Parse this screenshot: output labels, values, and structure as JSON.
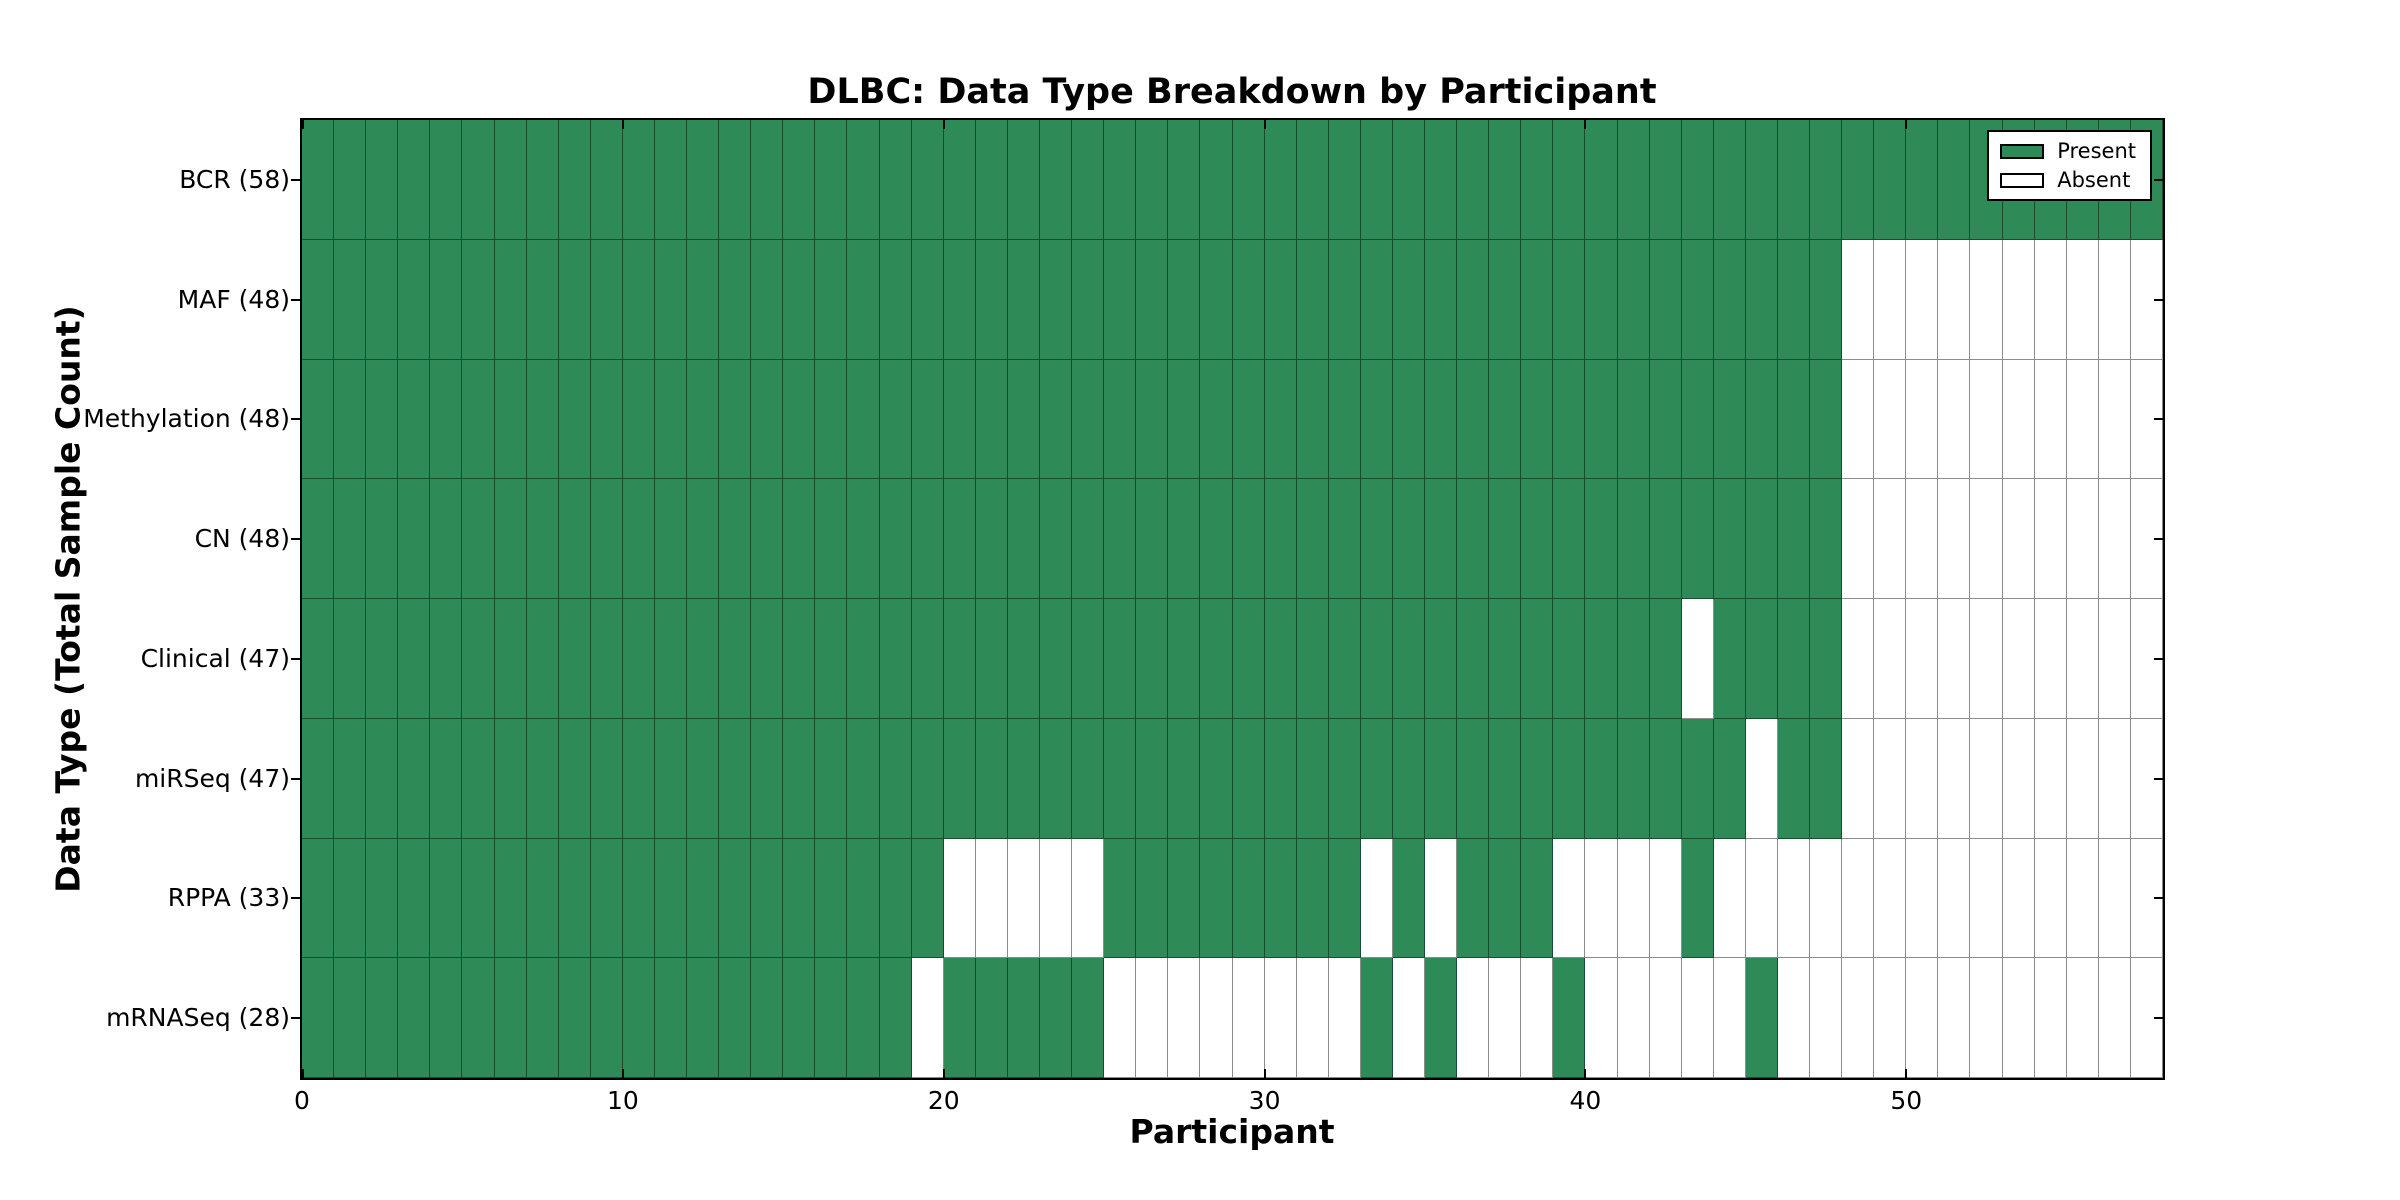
{
  "figure": {
    "background": "#ffffff"
  },
  "chart_data": {
    "type": "heatmap",
    "title": "DLBC: Data Type Breakdown by Participant",
    "xlabel": "Participant",
    "ylabel": "Data Type (Total Sample Count)",
    "n_participants": 58,
    "x_range": [
      0,
      58
    ],
    "x_ticks": [
      0,
      10,
      20,
      30,
      40,
      50
    ],
    "grid": "cell-borders",
    "legend": {
      "position": "upper right",
      "present_label": "Present",
      "absent_label": "Absent"
    },
    "colors": {
      "present": "#2E8B57",
      "absent": "#FFFFFF",
      "cell_border": "rgba(0,0,0,0.45)",
      "spine": "#000000"
    },
    "rows": [
      {
        "label": "BCR (58)",
        "name": "BCR",
        "total": 58,
        "present": "1111111111111111111111111111111111111111111111111111111111"
      },
      {
        "label": "MAF (48)",
        "name": "MAF",
        "total": 48,
        "present": "1111111111111111111111111111111111111111111111110000000000"
      },
      {
        "label": "Methylation (48)",
        "name": "Methylation",
        "total": 48,
        "present": "1111111111111111111111111111111111111111111111110000000000"
      },
      {
        "label": "CN (48)",
        "name": "CN",
        "total": 48,
        "present": "1111111111111111111111111111111111111111111111110000000000"
      },
      {
        "label": "Clinical (47)",
        "name": "Clinical",
        "total": 47,
        "present": "1111111111111111111111111111111111111111111011110000000000"
      },
      {
        "label": "miRSeq (47)",
        "name": "miRSeq",
        "total": 47,
        "present": "1111111111111111111111111111111111111111111110110000000000"
      },
      {
        "label": "RPPA (33)",
        "name": "RPPA",
        "total": 33,
        "present": "1111111111111111111100000111111110101110000100000000000000"
      },
      {
        "label": "mRNASeq (28)",
        "name": "mRNASeq",
        "total": 28,
        "present": "1111111111111111111011111000000001010001000001000000000000"
      }
    ]
  }
}
